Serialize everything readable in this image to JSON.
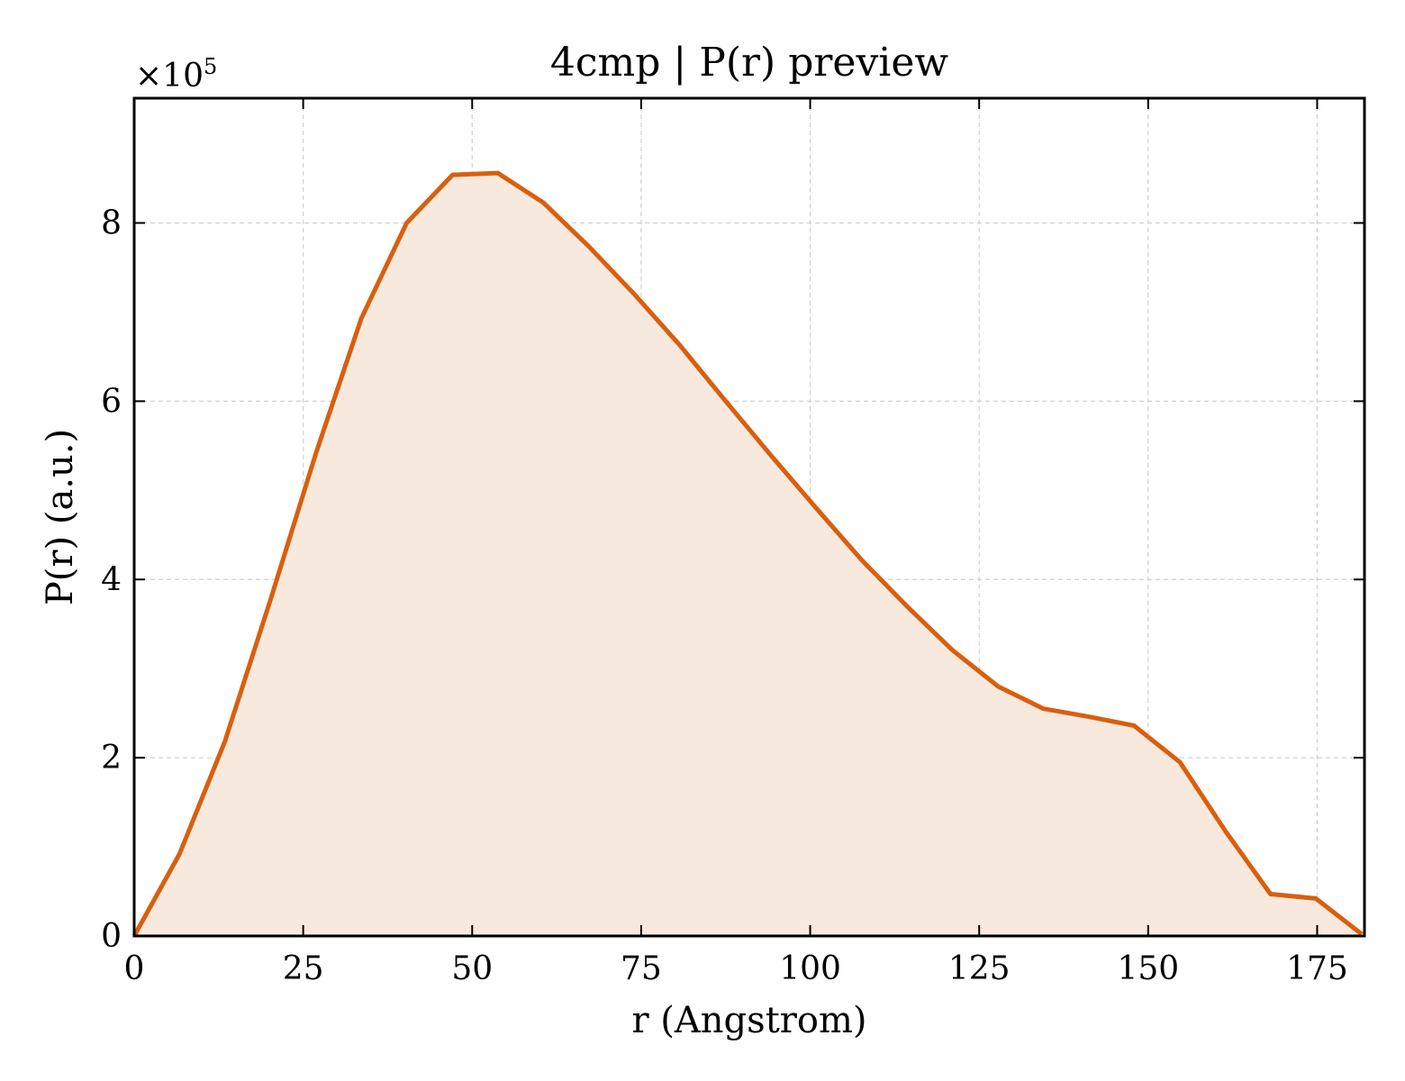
{
  "chart_data": {
    "type": "area",
    "title": "4cmp | P(r) preview",
    "xlabel": "r (Angstrom)",
    "ylabel": "P(r) (a.u.)",
    "y_offset_label": "×10",
    "y_offset_exponent": "5",
    "xlim": [
      0,
      182
    ],
    "ylim": [
      0,
      9.4
    ],
    "y_scale_note": "values in units of 1e5",
    "xticks": [
      0,
      25,
      50,
      75,
      100,
      125,
      150,
      175
    ],
    "yticks": [
      0,
      2,
      4,
      6,
      8
    ],
    "grid": true,
    "line_color": "#d95f0e",
    "fill_color": "#f8e9de",
    "series": [
      {
        "x": [
          0,
          6.7,
          13.4,
          20.2,
          26.9,
          33.6,
          40.3,
          47.1,
          53.8,
          60.5,
          67.2,
          74.0,
          80.7,
          87.4,
          94.1,
          100.9,
          107.6,
          114.3,
          121.0,
          127.8,
          134.5,
          141.2,
          147.9,
          154.7,
          161.4,
          168.1,
          174.8,
          181.6
        ],
        "y": [
          0.0,
          0.92,
          2.18,
          3.78,
          5.42,
          6.93,
          8.0,
          8.54,
          8.56,
          8.23,
          7.74,
          7.2,
          6.63,
          6.01,
          5.4,
          4.8,
          4.22,
          3.7,
          3.21,
          2.8,
          2.55,
          2.46,
          2.36,
          1.95,
          1.18,
          0.47,
          0.42,
          0.02
        ]
      }
    ]
  }
}
